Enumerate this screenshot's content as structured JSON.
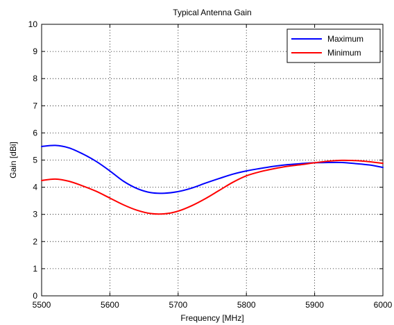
{
  "chart_data": {
    "type": "line",
    "title": "Typical Antenna Gain",
    "xlabel": "Frequency [MHz]",
    "ylabel": "Gain [dBi]",
    "xlim": [
      5500,
      6000
    ],
    "ylim": [
      0,
      10
    ],
    "xticks": [
      5500,
      5600,
      5700,
      5800,
      5900,
      6000
    ],
    "yticks": [
      0,
      1,
      2,
      3,
      4,
      5,
      6,
      7,
      8,
      9,
      10
    ],
    "grid": true,
    "legend_position": "top-right",
    "series": [
      {
        "name": "Maximum",
        "color": "#0000ff",
        "x": [
          5500,
          5520,
          5540,
          5560,
          5580,
          5600,
          5620,
          5640,
          5660,
          5680,
          5700,
          5720,
          5740,
          5760,
          5780,
          5800,
          5820,
          5840,
          5860,
          5880,
          5900,
          5920,
          5940,
          5960,
          5980,
          6000
        ],
        "y": [
          5.5,
          5.54,
          5.45,
          5.23,
          4.95,
          4.6,
          4.22,
          3.95,
          3.8,
          3.78,
          3.84,
          3.97,
          4.15,
          4.32,
          4.48,
          4.6,
          4.69,
          4.77,
          4.83,
          4.87,
          4.9,
          4.91,
          4.91,
          4.87,
          4.82,
          4.73
        ]
      },
      {
        "name": "Minimum",
        "color": "#ff0000",
        "x": [
          5500,
          5520,
          5540,
          5560,
          5580,
          5600,
          5620,
          5640,
          5660,
          5680,
          5700,
          5720,
          5740,
          5760,
          5780,
          5800,
          5820,
          5840,
          5860,
          5880,
          5900,
          5920,
          5940,
          5960,
          5980,
          6000
        ],
        "y": [
          4.25,
          4.3,
          4.22,
          4.05,
          3.85,
          3.6,
          3.35,
          3.15,
          3.03,
          3.02,
          3.12,
          3.32,
          3.58,
          3.88,
          4.18,
          4.42,
          4.57,
          4.68,
          4.77,
          4.83,
          4.9,
          4.96,
          4.99,
          4.98,
          4.94,
          4.88
        ]
      }
    ]
  }
}
